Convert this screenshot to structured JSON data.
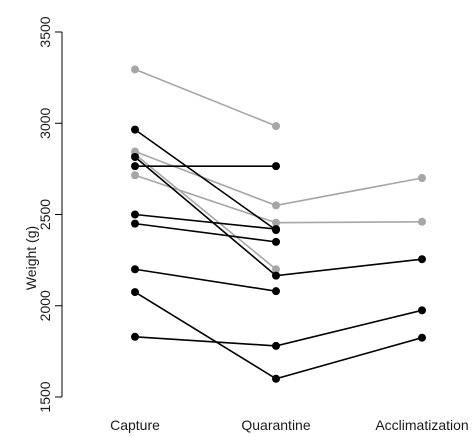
{
  "chart_data": {
    "type": "line",
    "title": "",
    "xlabel": "",
    "ylabel": "Weight (g)",
    "categories": [
      "Capture",
      "Quarantine",
      "Acclimatization"
    ],
    "ylim": [
      1500,
      3500
    ],
    "yticks": [
      1500,
      2000,
      2500,
      3000,
      3500
    ],
    "grid": false,
    "legend": "none",
    "colors": {
      "black": "#000000",
      "gray": "#a6a6a6"
    },
    "series": [
      {
        "color": "gray",
        "values": [
          3295,
          2985,
          null
        ]
      },
      {
        "color": "gray",
        "values": [
          2845,
          2550,
          2700
        ]
      },
      {
        "color": "gray",
        "values": [
          2830,
          2200,
          null
        ]
      },
      {
        "color": "gray",
        "values": [
          2715,
          2455,
          2460
        ]
      },
      {
        "color": "black",
        "values": [
          2965,
          2415,
          null
        ]
      },
      {
        "color": "black",
        "values": [
          2815,
          2165,
          2255
        ]
      },
      {
        "color": "black",
        "values": [
          2765,
          2765,
          null
        ]
      },
      {
        "color": "black",
        "values": [
          2500,
          2420,
          null
        ]
      },
      {
        "color": "black",
        "values": [
          2450,
          2350,
          null
        ]
      },
      {
        "color": "black",
        "values": [
          2200,
          2080,
          null
        ]
      },
      {
        "color": "black",
        "values": [
          2075,
          1600,
          1825
        ]
      },
      {
        "color": "black",
        "values": [
          1830,
          1780,
          1975
        ]
      }
    ]
  }
}
